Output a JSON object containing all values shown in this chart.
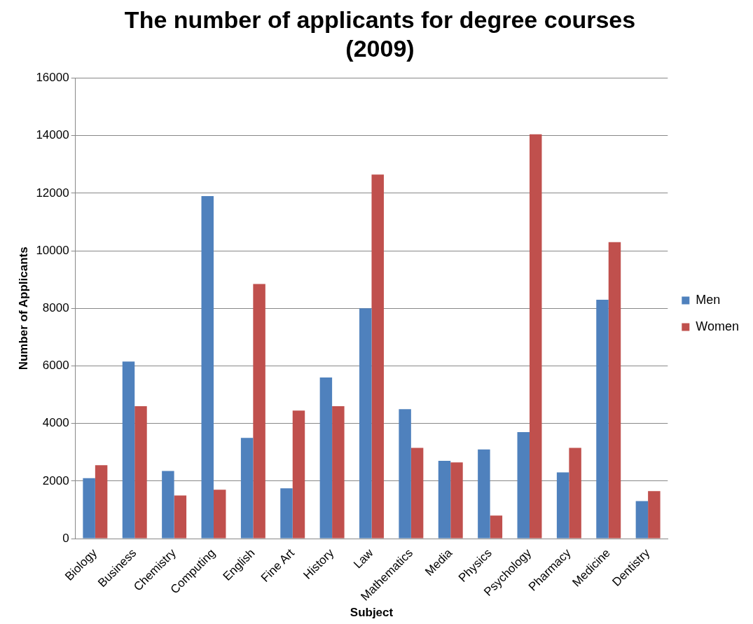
{
  "chart_data": {
    "type": "bar",
    "title": "The number of applicants for degree courses (2009)",
    "xlabel": "Subject",
    "ylabel": "Number of Applicants",
    "categories": [
      "Biology",
      "Business",
      "Chemistry",
      "Computing",
      "English",
      "Fine Art",
      "History",
      "Law",
      "Mathematics",
      "Media",
      "Physics",
      "Psychology",
      "Pharmacy",
      "Medicine",
      "Dentistry"
    ],
    "series": [
      {
        "name": "Men",
        "color": "#4f81bd",
        "values": [
          2100,
          6150,
          2350,
          11900,
          3500,
          1750,
          5600,
          8000,
          4500,
          2700,
          3100,
          3700,
          2300,
          8300,
          1300
        ]
      },
      {
        "name": "Women",
        "color": "#c0504d",
        "values": [
          2550,
          4600,
          1500,
          1700,
          8850,
          4450,
          4600,
          12650,
          3150,
          2650,
          800,
          14050,
          3150,
          10300,
          1650
        ]
      }
    ],
    "ylim": [
      0,
      16000
    ],
    "yticks": [
      0,
      2000,
      4000,
      6000,
      8000,
      10000,
      12000,
      14000,
      16000
    ],
    "grid": "y",
    "legend": "right"
  }
}
